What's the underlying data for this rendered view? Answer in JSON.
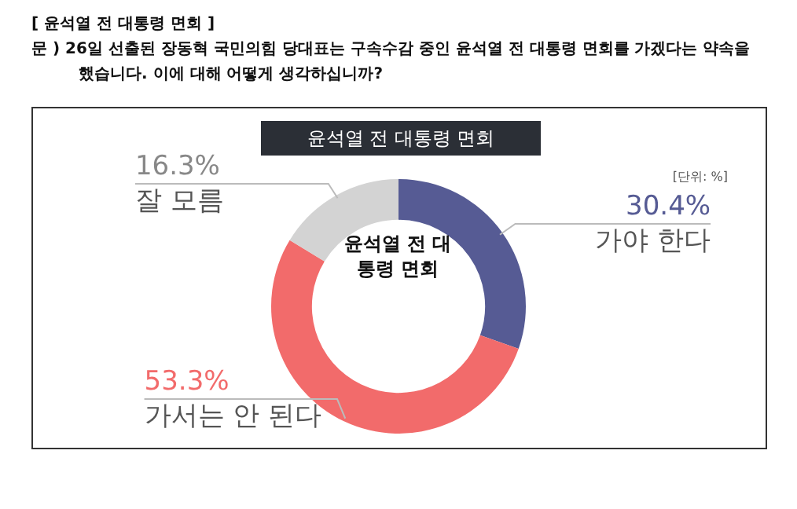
{
  "chart_data": {
    "type": "donut",
    "title": "[ 윤석열 전 대통령 면회 ]",
    "subtitle": "문 )  26일 선출된 장동혁 국민의힘 당대표는 구속수감 중인 윤석열 전 대통령 면회를 가겠다는 약속을 했습니다. 이에 대해 어떻게 생각하십니까?",
    "categories": [
      "가야 한다",
      "가서는 안 된다",
      "잘 모름"
    ],
    "values": [
      30.4,
      53.3,
      16.3
    ],
    "colors": [
      "#565b94",
      "#f26b6b",
      "#d3d3d3"
    ],
    "value_labels": [
      "30.4%",
      "53.3%",
      "16.3%"
    ],
    "annotations": [
      "윤석열 전 대통령 면회",
      "[단위: %]",
      "윤석열 전 대통령 면회"
    ],
    "legend": false
  }
}
